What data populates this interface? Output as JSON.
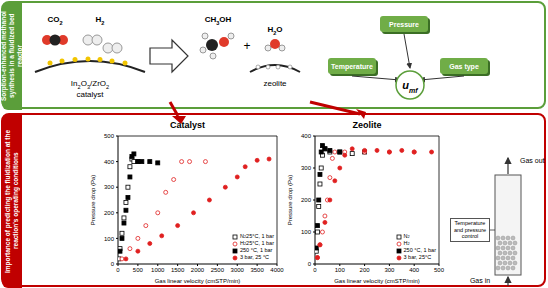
{
  "top_panel": {
    "side_label": "Sorption-enhanced methanol synthesis in a fluidized bed reactor",
    "reactants": [
      "CO2",
      "H2"
    ],
    "catalyst_label": "In2O3/ZrO2",
    "catalyst_word": "catalyst",
    "products": [
      "CH3OH",
      "H2O"
    ],
    "plus": "+",
    "sorbent": "zeolite",
    "factors": [
      "Temperature",
      "Pressure",
      "Gas type"
    ],
    "target": "umf"
  },
  "bottom_panel": {
    "side_label": "Importance of predicting the fluidization at the reaction's operating conditions",
    "reactor": {
      "gas_out": "Gas out",
      "gas_in": "Gas in",
      "control": "Temperature and pressure control"
    }
  },
  "chart_data": [
    {
      "type": "scatter",
      "title": "Catalyst",
      "xlabel": "Gas linear velocity (cmSTP/min)",
      "ylabel": "Pressure drop (Pa)",
      "xlim": [
        0,
        4000
      ],
      "xticks": [
        0,
        500,
        1000,
        1500,
        2000,
        2500,
        3000,
        3500,
        4000
      ],
      "ylim": [
        0,
        500
      ],
      "yticks": [
        0,
        100,
        200,
        300,
        400,
        500
      ],
      "grid": false,
      "legend": "lower right",
      "series": [
        {
          "name": "N2 25°C, 1 bar",
          "color": "#000000",
          "marker": "open_square",
          "x": [
            20,
            50,
            100,
            150,
            200,
            250,
            300,
            350,
            400,
            500
          ],
          "values": [
            20,
            60,
            120,
            180,
            240,
            300,
            380,
            410,
            400,
            400
          ]
        },
        {
          "name": "H2 25°C, 1 bar",
          "color": "#e02020",
          "marker": "open_circle",
          "x": [
            100,
            300,
            500,
            700,
            1000,
            1200,
            1400,
            1600,
            1800,
            2200
          ],
          "values": [
            20,
            60,
            100,
            150,
            200,
            280,
            330,
            400,
            400,
            400
          ]
        },
        {
          "name": "250 °C, 1 bar",
          "color": "#000000",
          "marker": "square",
          "x": [
            50,
            100,
            150,
            200,
            250,
            300,
            350,
            400,
            500,
            600,
            800,
            1000
          ],
          "values": [
            50,
            100,
            160,
            210,
            260,
            340,
            420,
            430,
            400,
            400,
            400,
            395
          ]
        },
        {
          "name": "3 bar, 25 °C",
          "color": "#e02020",
          "marker": "circle",
          "x": [
            200,
            500,
            800,
            1100,
            1500,
            1900,
            2300,
            2700,
            3000,
            3200,
            3500,
            3800
          ],
          "values": [
            20,
            50,
            80,
            110,
            150,
            200,
            250,
            300,
            340,
            380,
            405,
            410
          ]
        }
      ]
    },
    {
      "type": "scatter",
      "title": "Zeolite",
      "xlabel": "Gas linear velocity (cmSTP/min)",
      "ylabel": "Pressure drop (Pa)",
      "xlim": [
        0,
        500
      ],
      "xticks": [
        0,
        100,
        200,
        300,
        400,
        500
      ],
      "ylim": [
        0,
        400
      ],
      "yticks": [
        0,
        100,
        200,
        300,
        400
      ],
      "grid": false,
      "legend": "lower right",
      "series": [
        {
          "name": "N2",
          "color": "#000000",
          "marker": "open_square",
          "x": [
            5,
            10,
            15,
            20,
            25,
            30,
            40,
            60,
            100,
            150,
            200
          ],
          "values": [
            40,
            100,
            180,
            250,
            300,
            340,
            360,
            350,
            350,
            345,
            350
          ]
        },
        {
          "name": "H2",
          "color": "#e02020",
          "marker": "open_circle",
          "x": [
            10,
            20,
            30,
            40,
            50,
            60,
            70,
            80,
            120,
            200,
            300,
            400
          ],
          "values": [
            20,
            60,
            100,
            150,
            200,
            270,
            330,
            350,
            350,
            350,
            350,
            350
          ]
        },
        {
          "name": "250 °C, 1 bar",
          "color": "#000000",
          "marker": "square",
          "x": [
            5,
            10,
            15,
            20,
            25,
            30,
            40,
            60,
            100
          ],
          "values": [
            50,
            120,
            200,
            280,
            350,
            370,
            360,
            355,
            350
          ]
        },
        {
          "name": "3 bar, 25°C",
          "color": "#e02020",
          "marker": "circle",
          "x": [
            10,
            20,
            40,
            60,
            80,
            100,
            120,
            150,
            200,
            250,
            300,
            350,
            400,
            470
          ],
          "values": [
            20,
            60,
            130,
            200,
            260,
            300,
            340,
            360,
            355,
            355,
            350,
            355,
            350,
            350
          ]
        }
      ]
    }
  ]
}
